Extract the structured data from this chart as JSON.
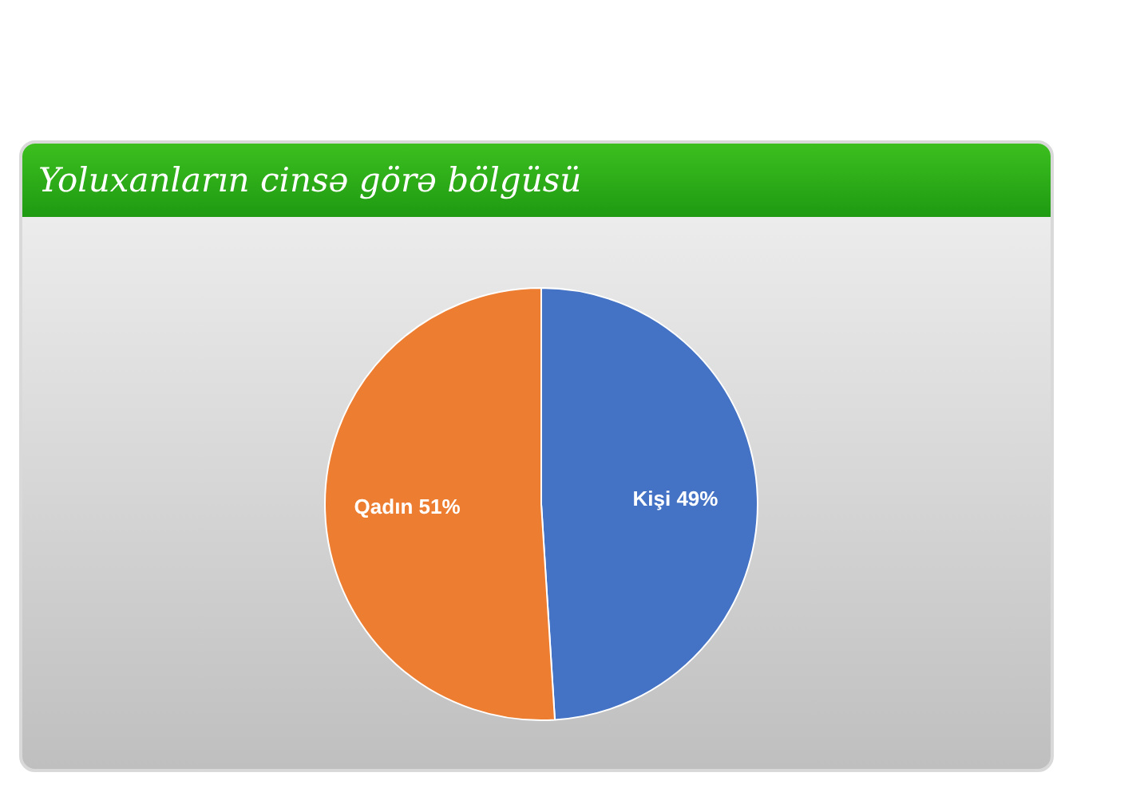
{
  "chart_data": {
    "type": "pie",
    "title": "Yoluxanların cinsə görə bölgüsü",
    "categories": [
      "Kişi",
      "Qadın"
    ],
    "values": [
      49,
      51
    ],
    "colors": [
      "#4472c4",
      "#ed7d31"
    ],
    "value_labels": [
      "49%",
      "51%"
    ],
    "legend": false
  }
}
